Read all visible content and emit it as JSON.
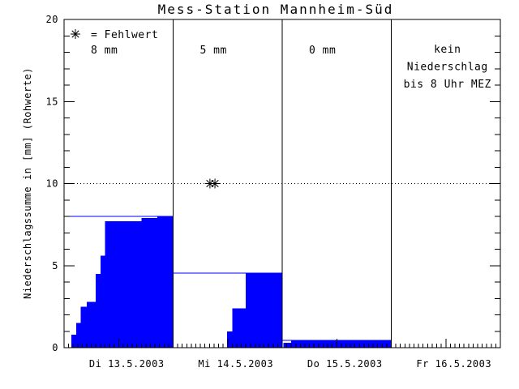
{
  "title": "Mess-Station Mannheim-Süd",
  "colors": {
    "bar": "#0000ff",
    "axis": "#000000",
    "background": "#ffffff"
  },
  "chart_data": {
    "type": "bar",
    "title": "Mess-Station Mannheim-Süd",
    "ylabel": "Niederschlagssumme in [mm] (Rohwerte)",
    "ylim": [
      0,
      20
    ],
    "y_major_ticks": [
      0,
      5,
      10,
      15,
      20
    ],
    "y_minor_step": 1,
    "x_hours_per_panel": 24,
    "reference_line_mm": 10,
    "grid": "dotted line at 10 mm only",
    "bar_color": "#0000ff",
    "legend": {
      "marker": "asterisk",
      "label": "= Fehlwert",
      "position": "top-left panel 1"
    },
    "panels": [
      {
        "date_label": "Di 13.5.2003",
        "annotation": "8 mm",
        "day_total_line_mm": 8.0,
        "cumulative_steps": [
          {
            "from_hour": 1.6,
            "to_hour": 2.7,
            "mm": 0.8
          },
          {
            "from_hour": 2.7,
            "to_hour": 3.7,
            "mm": 1.5
          },
          {
            "from_hour": 3.7,
            "to_hour": 5.0,
            "mm": 2.5
          },
          {
            "from_hour": 5.0,
            "to_hour": 7.0,
            "mm": 2.8
          },
          {
            "from_hour": 7.0,
            "to_hour": 8.0,
            "mm": 4.5
          },
          {
            "from_hour": 8.0,
            "to_hour": 9.0,
            "mm": 5.6
          },
          {
            "from_hour": 9.0,
            "to_hour": 17.0,
            "mm": 7.7
          },
          {
            "from_hour": 17.0,
            "to_hour": 20.5,
            "mm": 7.9
          },
          {
            "from_hour": 20.5,
            "to_hour": 24.0,
            "mm": 8.0
          }
        ],
        "missing_markers": []
      },
      {
        "date_label": "Mi 14.5.2003",
        "annotation": "5 mm",
        "day_total_line_mm": 4.55,
        "cumulative_steps": [
          {
            "from_hour": 11.9,
            "to_hour": 13.0,
            "mm": 1.0
          },
          {
            "from_hour": 13.0,
            "to_hour": 16.0,
            "mm": 2.4
          },
          {
            "from_hour": 16.0,
            "to_hour": 24.0,
            "mm": 4.55
          }
        ],
        "missing_markers": [
          {
            "hour": 8.1,
            "mm": 10
          },
          {
            "hour": 9.2,
            "mm": 10
          }
        ]
      },
      {
        "date_label": "Do 15.5.2003",
        "annotation": "0 mm",
        "day_total_line_mm": 0.45,
        "cumulative_steps": [
          {
            "from_hour": 0.3,
            "to_hour": 2.0,
            "mm": 0.3
          },
          {
            "from_hour": 2.0,
            "to_hour": 24.0,
            "mm": 0.45
          }
        ],
        "missing_markers": []
      },
      {
        "date_label": "Fr 16.5.2003",
        "annotation": null,
        "note_lines": [
          "kein",
          "Niederschlag",
          "bis 8 Uhr MEZ"
        ],
        "day_total_line_mm": null,
        "cumulative_steps": [],
        "missing_markers": []
      }
    ]
  }
}
